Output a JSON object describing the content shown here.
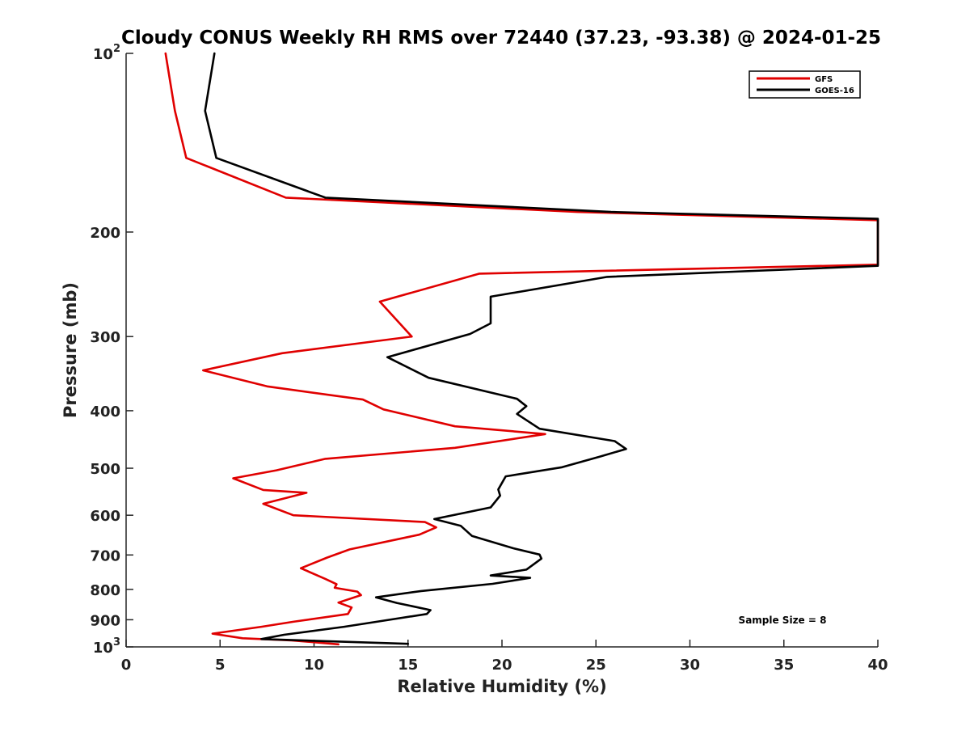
{
  "chart_data": {
    "type": "line",
    "title": "Cloudy CONUS Weekly RH RMS over 72440 (37.23, -93.38) @ 2024-01-25",
    "xlabel": "Relative Humidity (%)",
    "ylabel": "Pressure (mb)",
    "xlim": [
      0,
      40
    ],
    "ylim": [
      100,
      1000
    ],
    "y_scale": "log",
    "y_reversed": true,
    "grid": false,
    "legend_position": "top-right",
    "x_ticks": [
      0,
      5,
      10,
      15,
      20,
      25,
      30,
      35,
      40
    ],
    "x_tick_labels": [
      "0",
      "5",
      "10",
      "15",
      "20",
      "25",
      "30",
      "35",
      "40"
    ],
    "y_ticks": [
      100,
      200,
      300,
      400,
      500,
      600,
      700,
      800,
      900,
      1000
    ],
    "y_tick_labels": [
      {
        "base": "10",
        "exp": "2"
      },
      {
        "base": "200",
        "exp": ""
      },
      {
        "base": "300",
        "exp": ""
      },
      {
        "base": "400",
        "exp": ""
      },
      {
        "base": "500",
        "exp": ""
      },
      {
        "base": "600",
        "exp": ""
      },
      {
        "base": "700",
        "exp": ""
      },
      {
        "base": "800",
        "exp": ""
      },
      {
        "base": "900",
        "exp": ""
      },
      {
        "base": "10",
        "exp": "3"
      }
    ],
    "annotation": "Sample Size = 8",
    "series": [
      {
        "name": "GFS",
        "color": "#e00000",
        "points": [
          [
            2.1,
            100
          ],
          [
            2.6,
            125
          ],
          [
            3.2,
            150
          ],
          [
            8.5,
            175
          ],
          [
            24.0,
            185
          ],
          [
            40.0,
            191
          ],
          [
            40.0,
            227
          ],
          [
            18.8,
            235
          ],
          [
            13.5,
            262
          ],
          [
            15.2,
            300
          ],
          [
            8.3,
            320
          ],
          [
            4.1,
            342
          ],
          [
            7.5,
            364
          ],
          [
            12.6,
            383
          ],
          [
            13.7,
            398
          ],
          [
            17.5,
            425
          ],
          [
            22.3,
            438
          ],
          [
            17.5,
            462
          ],
          [
            10.6,
            482
          ],
          [
            8.0,
            504
          ],
          [
            5.7,
            520
          ],
          [
            7.3,
            544
          ],
          [
            9.6,
            550
          ],
          [
            7.3,
            574
          ],
          [
            8.9,
            600
          ],
          [
            15.9,
            616
          ],
          [
            16.5,
            629
          ],
          [
            15.6,
            647
          ],
          [
            11.9,
            685
          ],
          [
            10.7,
            707
          ],
          [
            9.3,
            737
          ],
          [
            10.6,
            768
          ],
          [
            11.2,
            784
          ],
          [
            11.1,
            795
          ],
          [
            12.3,
            807
          ],
          [
            12.5,
            818
          ],
          [
            11.3,
            842
          ],
          [
            12.0,
            858
          ],
          [
            11.8,
            880
          ],
          [
            8.9,
            907
          ],
          [
            7.2,
            925
          ],
          [
            4.6,
            950
          ],
          [
            6.2,
            967
          ],
          [
            8.8,
            975
          ],
          [
            11.3,
            990
          ]
        ]
      },
      {
        "name": "GOES-16",
        "color": "#000000",
        "points": [
          [
            4.7,
            100
          ],
          [
            4.2,
            125
          ],
          [
            4.8,
            150
          ],
          [
            10.6,
            175
          ],
          [
            25.8,
            185
          ],
          [
            40.0,
            190
          ],
          [
            40.0,
            228
          ],
          [
            25.6,
            238
          ],
          [
            19.4,
            257
          ],
          [
            19.4,
            285
          ],
          [
            18.3,
            297
          ],
          [
            13.9,
            325
          ],
          [
            16.1,
            352
          ],
          [
            20.8,
            382
          ],
          [
            21.3,
            393
          ],
          [
            20.8,
            405
          ],
          [
            22.0,
            429
          ],
          [
            26.0,
            450
          ],
          [
            26.6,
            464
          ],
          [
            25.2,
            478
          ],
          [
            23.2,
            498
          ],
          [
            20.2,
            516
          ],
          [
            19.8,
            543
          ],
          [
            19.9,
            556
          ],
          [
            19.4,
            582
          ],
          [
            16.4,
            609
          ],
          [
            17.8,
            625
          ],
          [
            18.4,
            650
          ],
          [
            20.6,
            682
          ],
          [
            22.0,
            699
          ],
          [
            22.1,
            710
          ],
          [
            21.3,
            741
          ],
          [
            19.4,
            758
          ],
          [
            21.5,
            765
          ],
          [
            19.5,
            783
          ],
          [
            15.7,
            805
          ],
          [
            13.3,
            825
          ],
          [
            14.4,
            843
          ],
          [
            16.2,
            867
          ],
          [
            16.0,
            880
          ],
          [
            11.6,
            925
          ],
          [
            8.4,
            954
          ],
          [
            7.2,
            970
          ],
          [
            15.0,
            988
          ]
        ]
      }
    ]
  }
}
